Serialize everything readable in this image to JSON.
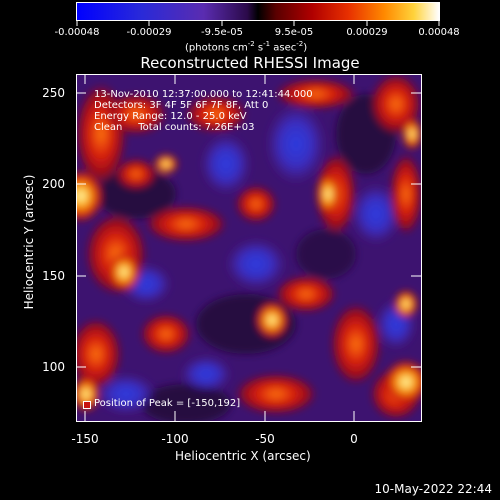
{
  "colorbar": {
    "ticks": [
      "-0.00048",
      "-0.00029",
      "-9.5e-05",
      "9.5e-05",
      "0.00029",
      "0.00048"
    ],
    "units_main": "(photons cm",
    "units_exp1": "-2",
    "units_mid1": " s",
    "units_exp2": "-1",
    "units_mid2": " asec",
    "units_exp3": "-2",
    "units_end": ")"
  },
  "title": "Reconstructed RHESSI Image",
  "annotation": {
    "time": "13-Nov-2010 12:37:00.000 to 12:41:44.000",
    "detectors": "Detectors: 3F 4F 5F 6F 7F 8F, Att 0",
    "energy": "Energy Range: 12.0 - 25.0 keV",
    "clean": "Clean     Total counts: 7.26E+03"
  },
  "peak": "Position of Peak = [-150,192]",
  "axes": {
    "xlabel": "Heliocentric X (arcsec)",
    "ylabel": "Heliocentric Y (arcsec)",
    "xticks": [
      "-150",
      "-100",
      "-50",
      "0"
    ],
    "yticks": [
      "250",
      "200",
      "150",
      "100"
    ],
    "xrange": [
      -153,
      36
    ],
    "yrange": [
      67,
      263
    ]
  },
  "footer": "10-May-2022 22:44",
  "colors": {
    "background": "#000000",
    "dark_purple": "#2b0a4a",
    "purple": "#6a1fb0",
    "blue": "#2f3fd8",
    "red": "#c81410",
    "orange": "#f06a00",
    "yellow": "#ffd23a",
    "white": "#ffffff"
  }
}
